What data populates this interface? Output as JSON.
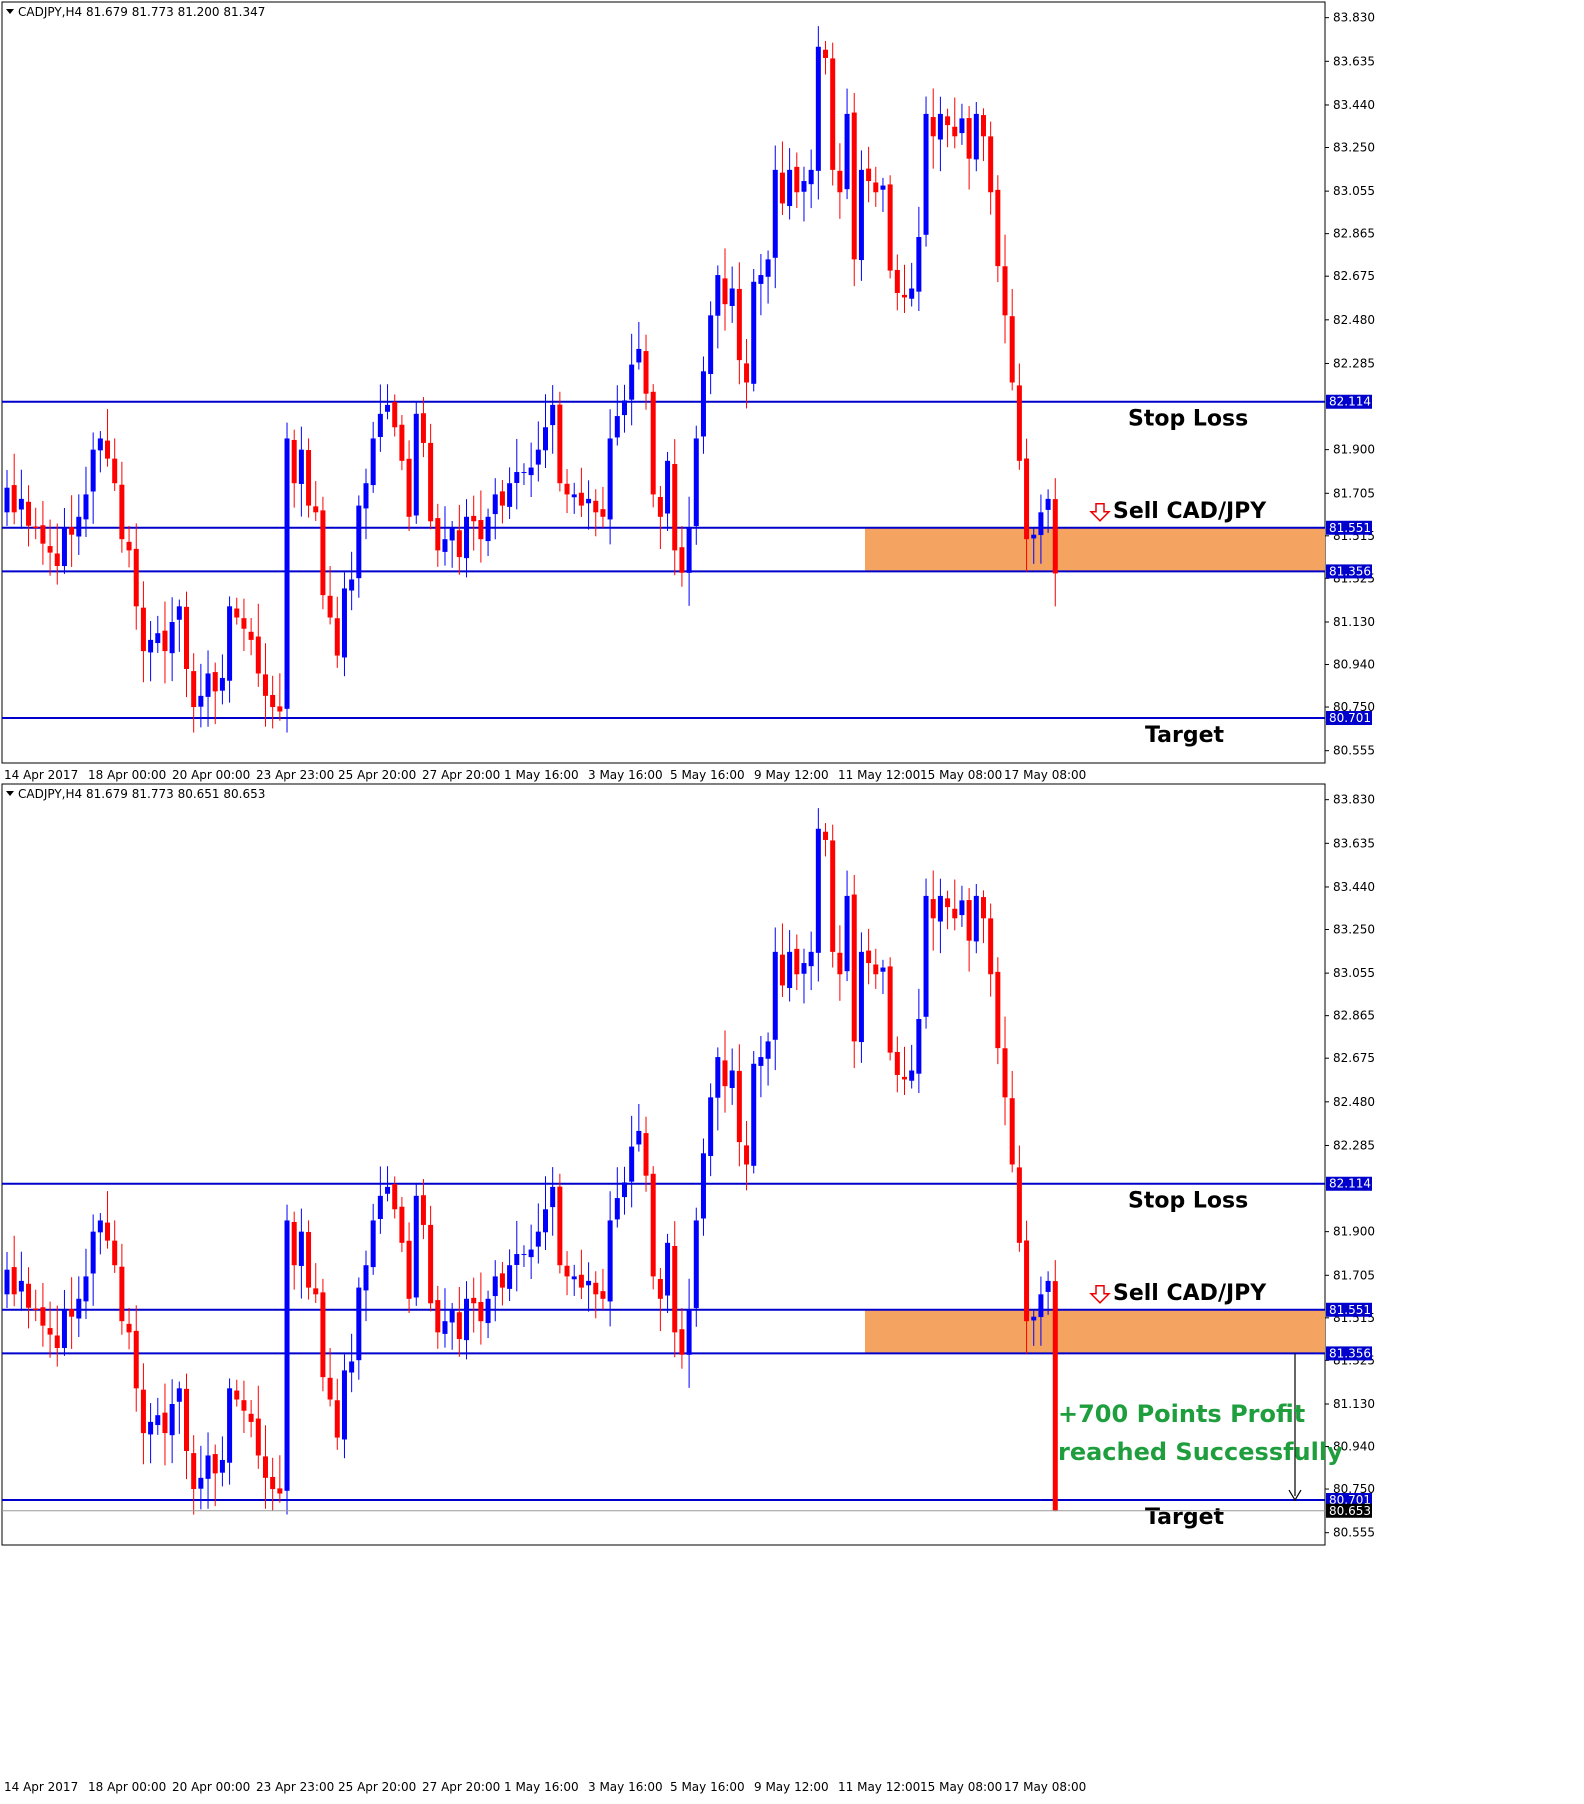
{
  "colors": {
    "bull": "#0000ff",
    "bear": "#ff0000",
    "level": "#0000cc",
    "zone": "#f4a460",
    "profit_text": "#1f9e3d",
    "tag_bg": "#0000cc"
  },
  "time_labels": [
    "14 Apr 2017",
    "18 Apr 00:00",
    "20 Apr 00:00",
    "23 Apr 23:00",
    "25 Apr 20:00",
    "27 Apr 20:00",
    "1 May 16:00",
    "3 May 16:00",
    "5 May 16:00",
    "9 May 12:00",
    "11 May 12:00",
    "15 May 08:00",
    "17 May 08:00"
  ],
  "price_ticks": [
    "83.830",
    "83.635",
    "83.440",
    "83.250",
    "83.055",
    "82.865",
    "82.675",
    "82.480",
    "82.285",
    "81.900",
    "81.705",
    "81.515",
    "81.325",
    "81.130",
    "80.940",
    "80.750",
    "80.555"
  ],
  "levels": [
    {
      "name": "stop-loss-level",
      "price": 82.114,
      "tag": "82.114"
    },
    {
      "name": "entry-upper-level",
      "price": 81.551,
      "tag": "81.551"
    },
    {
      "name": "entry-lower-level",
      "price": 81.356,
      "tag": "81.356"
    },
    {
      "name": "target-level",
      "price": 80.701,
      "tag": "80.701"
    }
  ],
  "panels": [
    {
      "header": "CADJPY,H4  81.679 81.773 81.200 81.347",
      "stop_loss_label": "Stop Loss",
      "sell_label": "Sell CAD/JPY",
      "target_label": "Target"
    },
    {
      "header": "CADJPY,H4  81.679 81.773 80.651 80.653",
      "stop_loss_label": "Stop Loss",
      "sell_label": "Sell CAD/JPY",
      "target_label": "Target",
      "current_price_tag": "80.653",
      "profit_line1": "+700 Points Profit",
      "profit_line2": "reached Successfully"
    }
  ],
  "chart_data": {
    "type": "candlestick",
    "symbol": "CADJPY",
    "timeframe": "H4",
    "ylim": [
      80.5,
      83.9
    ],
    "closes": [
      81.73,
      81.62,
      81.68,
      81.56,
      81.55,
      81.48,
      81.44,
      81.38,
      81.55,
      81.52,
      81.6,
      81.7,
      81.9,
      81.95,
      81.86,
      81.75,
      81.5,
      81.45,
      81.2,
      81.0,
      81.05,
      81.08,
      81.0,
      81.13,
      81.2,
      80.92,
      80.75,
      80.8,
      80.9,
      80.82,
      80.88,
      81.2,
      81.15,
      81.1,
      81.05,
      80.9,
      80.8,
      80.75,
      80.73,
      81.95,
      81.75,
      81.9,
      81.65,
      81.62,
      81.25,
      81.15,
      80.98,
      81.28,
      81.32,
      81.65,
      81.75,
      81.95,
      82.06,
      82.1,
      82.0,
      81.85,
      81.6,
      82.06,
      81.93,
      81.58,
      81.45,
      81.5,
      81.55,
      81.42,
      81.6,
      81.58,
      81.5,
      81.6,
      81.7,
      81.65,
      81.75,
      81.8,
      81.8,
      81.82,
      81.9,
      82.0,
      82.1,
      81.75,
      81.7,
      81.7,
      81.65,
      81.68,
      81.62,
      81.6,
      81.95,
      82.05,
      82.12,
      82.28,
      82.35,
      82.15,
      81.7,
      81.6,
      81.85,
      81.45,
      81.35,
      81.55,
      81.95,
      82.25,
      82.5,
      82.68,
      82.55,
      82.62,
      82.3,
      82.2,
      82.65,
      82.68,
      82.75,
      83.15,
      83.0,
      83.15,
      83.05,
      83.1,
      83.15,
      83.7,
      83.65,
      83.15,
      83.05,
      83.4,
      82.75,
      83.15,
      83.1,
      83.05,
      83.08,
      82.7,
      82.6,
      82.58,
      82.62,
      82.85,
      83.4,
      83.3,
      83.4,
      83.35,
      83.3,
      83.38,
      83.2,
      83.4,
      83.3,
      83.05,
      82.72,
      82.5,
      82.2,
      81.85,
      81.5,
      81.52,
      81.62,
      81.68,
      81.347
    ]
  }
}
